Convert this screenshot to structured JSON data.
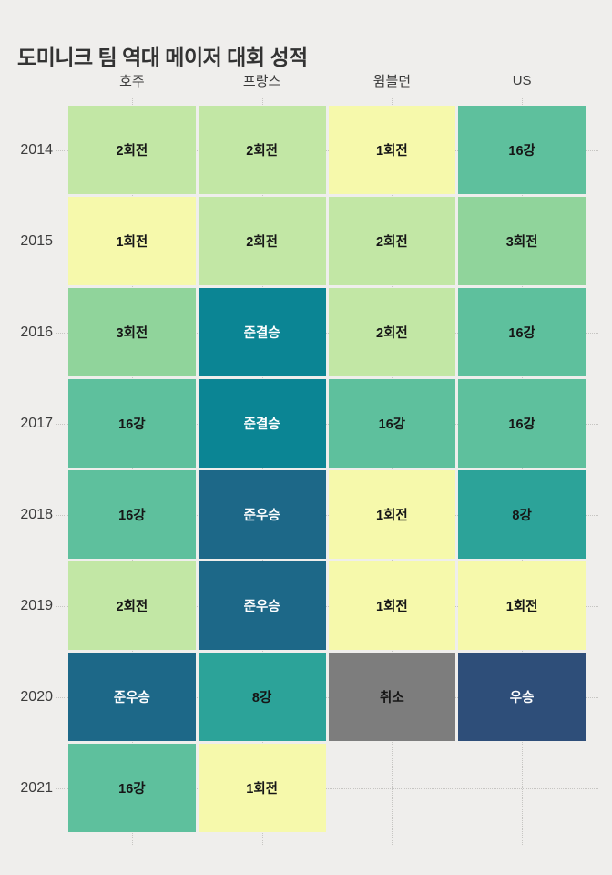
{
  "title": "도미니크 팀 역대 메이저 대회 성적",
  "chart_data": {
    "type": "heatmap",
    "title": "도미니크 팀 역대 메이저 대회 성적",
    "columns": [
      "호주",
      "프랑스",
      "윔블던",
      "US"
    ],
    "rows": [
      "2014",
      "2015",
      "2016",
      "2017",
      "2018",
      "2019",
      "2020",
      "2021"
    ],
    "cells": [
      [
        "2회전",
        "2회전",
        "1회전",
        "16강"
      ],
      [
        "1회전",
        "2회전",
        "2회전",
        "3회전"
      ],
      [
        "3회전",
        "준결승",
        "2회전",
        "16강"
      ],
      [
        "16강",
        "준결승",
        "16강",
        "16강"
      ],
      [
        "16강",
        "준우승",
        "1회전",
        "8강"
      ],
      [
        "2회전",
        "준우승",
        "1회전",
        "1회전"
      ],
      [
        "준우승",
        "8강",
        "취소",
        "우승"
      ],
      [
        "16강",
        "1회전",
        null,
        null
      ]
    ],
    "value_colors": {
      "1회전": "#f6f9ab",
      "2회전": "#c2e7a5",
      "3회전": "#90d49b",
      "16강": "#5ec09d",
      "8강": "#2ca399",
      "준결승": "#0b8594",
      "준우승": "#1d6888",
      "우승": "#2e4e79",
      "취소": "#7d7d7d"
    },
    "white_text_values": [
      "준결승",
      "준우승",
      "우승"
    ],
    "legend_position": "none",
    "grid": "dotted"
  },
  "colors": {
    "background": "#efeeec",
    "title_text": "#333333",
    "axis_text": "#3c3c3c",
    "cell_text_dark": "#161616",
    "cell_text_light": "#ffffff",
    "gridline": "#c6c5c2"
  }
}
